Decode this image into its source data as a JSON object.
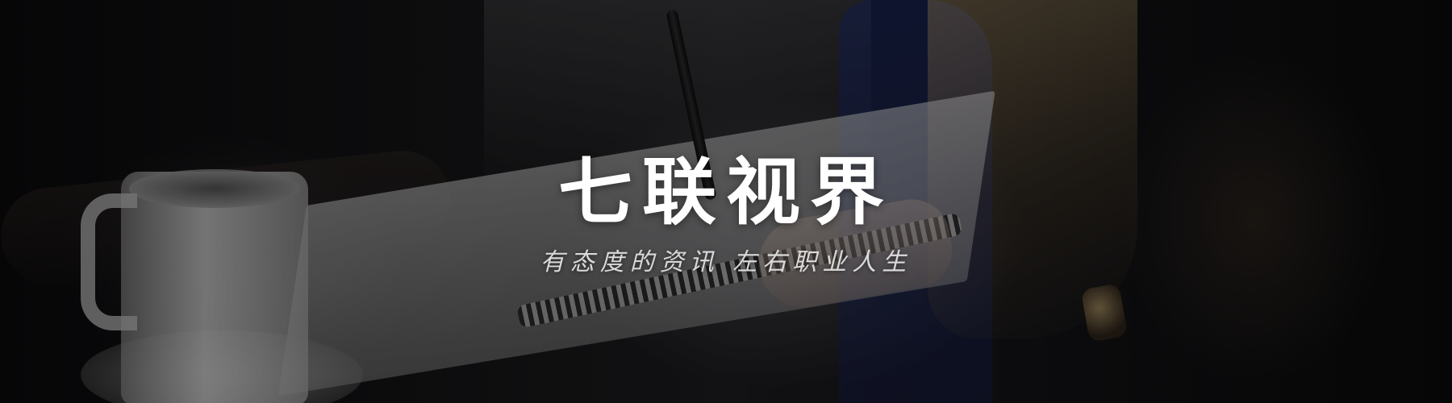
{
  "banner": {
    "title": "七联视界",
    "subtitle": "有态度的资讯 左右职业人生",
    "colors": {
      "title": "#ffffff",
      "subtitle": "#e6e6e6",
      "overlay": "#000000"
    }
  }
}
